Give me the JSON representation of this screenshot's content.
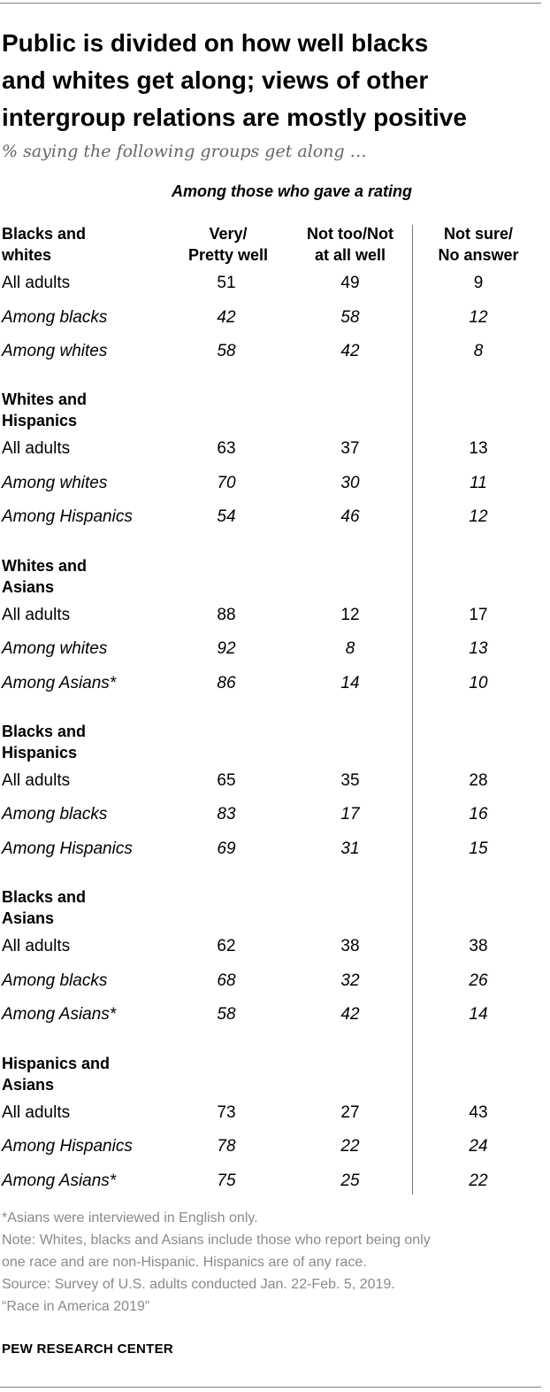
{
  "title_lines": [
    "Public is divided on how well blacks",
    "and whites get along; views of other",
    "intergroup relations are mostly positive"
  ],
  "subtitle": "% saying the following groups get along …",
  "band_header": "Among those who gave a rating",
  "columns": [
    {
      "line1": "Very/",
      "line2": "Pretty well"
    },
    {
      "line1": "Not too/Not",
      "line2": "at all well"
    },
    {
      "line1": "Not sure/",
      "line2": "No answer"
    }
  ],
  "chart_data": {
    "type": "table",
    "title": "Public is divided on how well blacks and whites get along; views of other intergroup relations are mostly positive",
    "subtitle": "% saying the following groups get along …",
    "columns": [
      "Very/ Pretty well",
      "Not too/Not at all well",
      "Not sure/ No answer"
    ],
    "groups": [
      {
        "name": "Blacks and whites",
        "title_lines": [
          "Blacks and",
          "whites"
        ],
        "rows": [
          {
            "label": "All adults",
            "italic": false,
            "values": [
              51,
              49,
              9
            ]
          },
          {
            "label": "Among blacks",
            "italic": true,
            "values": [
              42,
              58,
              12
            ]
          },
          {
            "label": "Among whites",
            "italic": true,
            "values": [
              58,
              42,
              8
            ]
          }
        ]
      },
      {
        "name": "Whites and Hispanics",
        "title_lines": [
          "Whites and",
          "Hispanics"
        ],
        "rows": [
          {
            "label": "All adults",
            "italic": false,
            "values": [
              63,
              37,
              13
            ]
          },
          {
            "label": "Among whites",
            "italic": true,
            "values": [
              70,
              30,
              11
            ]
          },
          {
            "label": "Among Hispanics",
            "italic": true,
            "values": [
              54,
              46,
              12
            ]
          }
        ]
      },
      {
        "name": "Whites and Asians",
        "title_lines": [
          "Whites and",
          "Asians"
        ],
        "rows": [
          {
            "label": "All adults",
            "italic": false,
            "values": [
              88,
              12,
              17
            ]
          },
          {
            "label": "Among whites",
            "italic": true,
            "values": [
              92,
              8,
              13
            ]
          },
          {
            "label": "Among Asians*",
            "italic": true,
            "values": [
              86,
              14,
              10
            ]
          }
        ]
      },
      {
        "name": "Blacks and Hispanics",
        "title_lines": [
          "Blacks and",
          "Hispanics"
        ],
        "rows": [
          {
            "label": "All adults",
            "italic": false,
            "values": [
              65,
              35,
              28
            ]
          },
          {
            "label": "Among blacks",
            "italic": true,
            "values": [
              83,
              17,
              16
            ]
          },
          {
            "label": "Among Hispanics",
            "italic": true,
            "values": [
              69,
              31,
              15
            ]
          }
        ]
      },
      {
        "name": "Blacks and Asians",
        "title_lines": [
          "Blacks and",
          "Asians"
        ],
        "rows": [
          {
            "label": "All adults",
            "italic": false,
            "values": [
              62,
              38,
              38
            ]
          },
          {
            "label": "Among blacks",
            "italic": true,
            "values": [
              68,
              32,
              26
            ]
          },
          {
            "label": "Among Asians*",
            "italic": true,
            "values": [
              58,
              42,
              14
            ]
          }
        ]
      },
      {
        "name": "Hispanics and Asians",
        "title_lines": [
          "Hispanics and",
          "Asians"
        ],
        "rows": [
          {
            "label": "All adults",
            "italic": false,
            "values": [
              73,
              27,
              43
            ]
          },
          {
            "label": "Among Hispanics",
            "italic": true,
            "values": [
              78,
              22,
              24
            ]
          },
          {
            "label": "Among Asians*",
            "italic": true,
            "values": [
              75,
              25,
              22
            ]
          }
        ]
      }
    ]
  },
  "notes": [
    "*Asians were interviewed in English only.",
    "Note: Whites, blacks and Asians include those who report being only",
    "one race and are non-Hispanic. Hispanics are of any race.",
    "Source: Survey of U.S. adults conducted Jan. 22-Feb. 5, 2019.",
    "“Race in America 2019”"
  ],
  "brand": "PEW RESEARCH CENTER",
  "colors": {
    "rule": "#7f7f7f",
    "notes": "#8a8a8a",
    "subtitle": "#666666"
  }
}
